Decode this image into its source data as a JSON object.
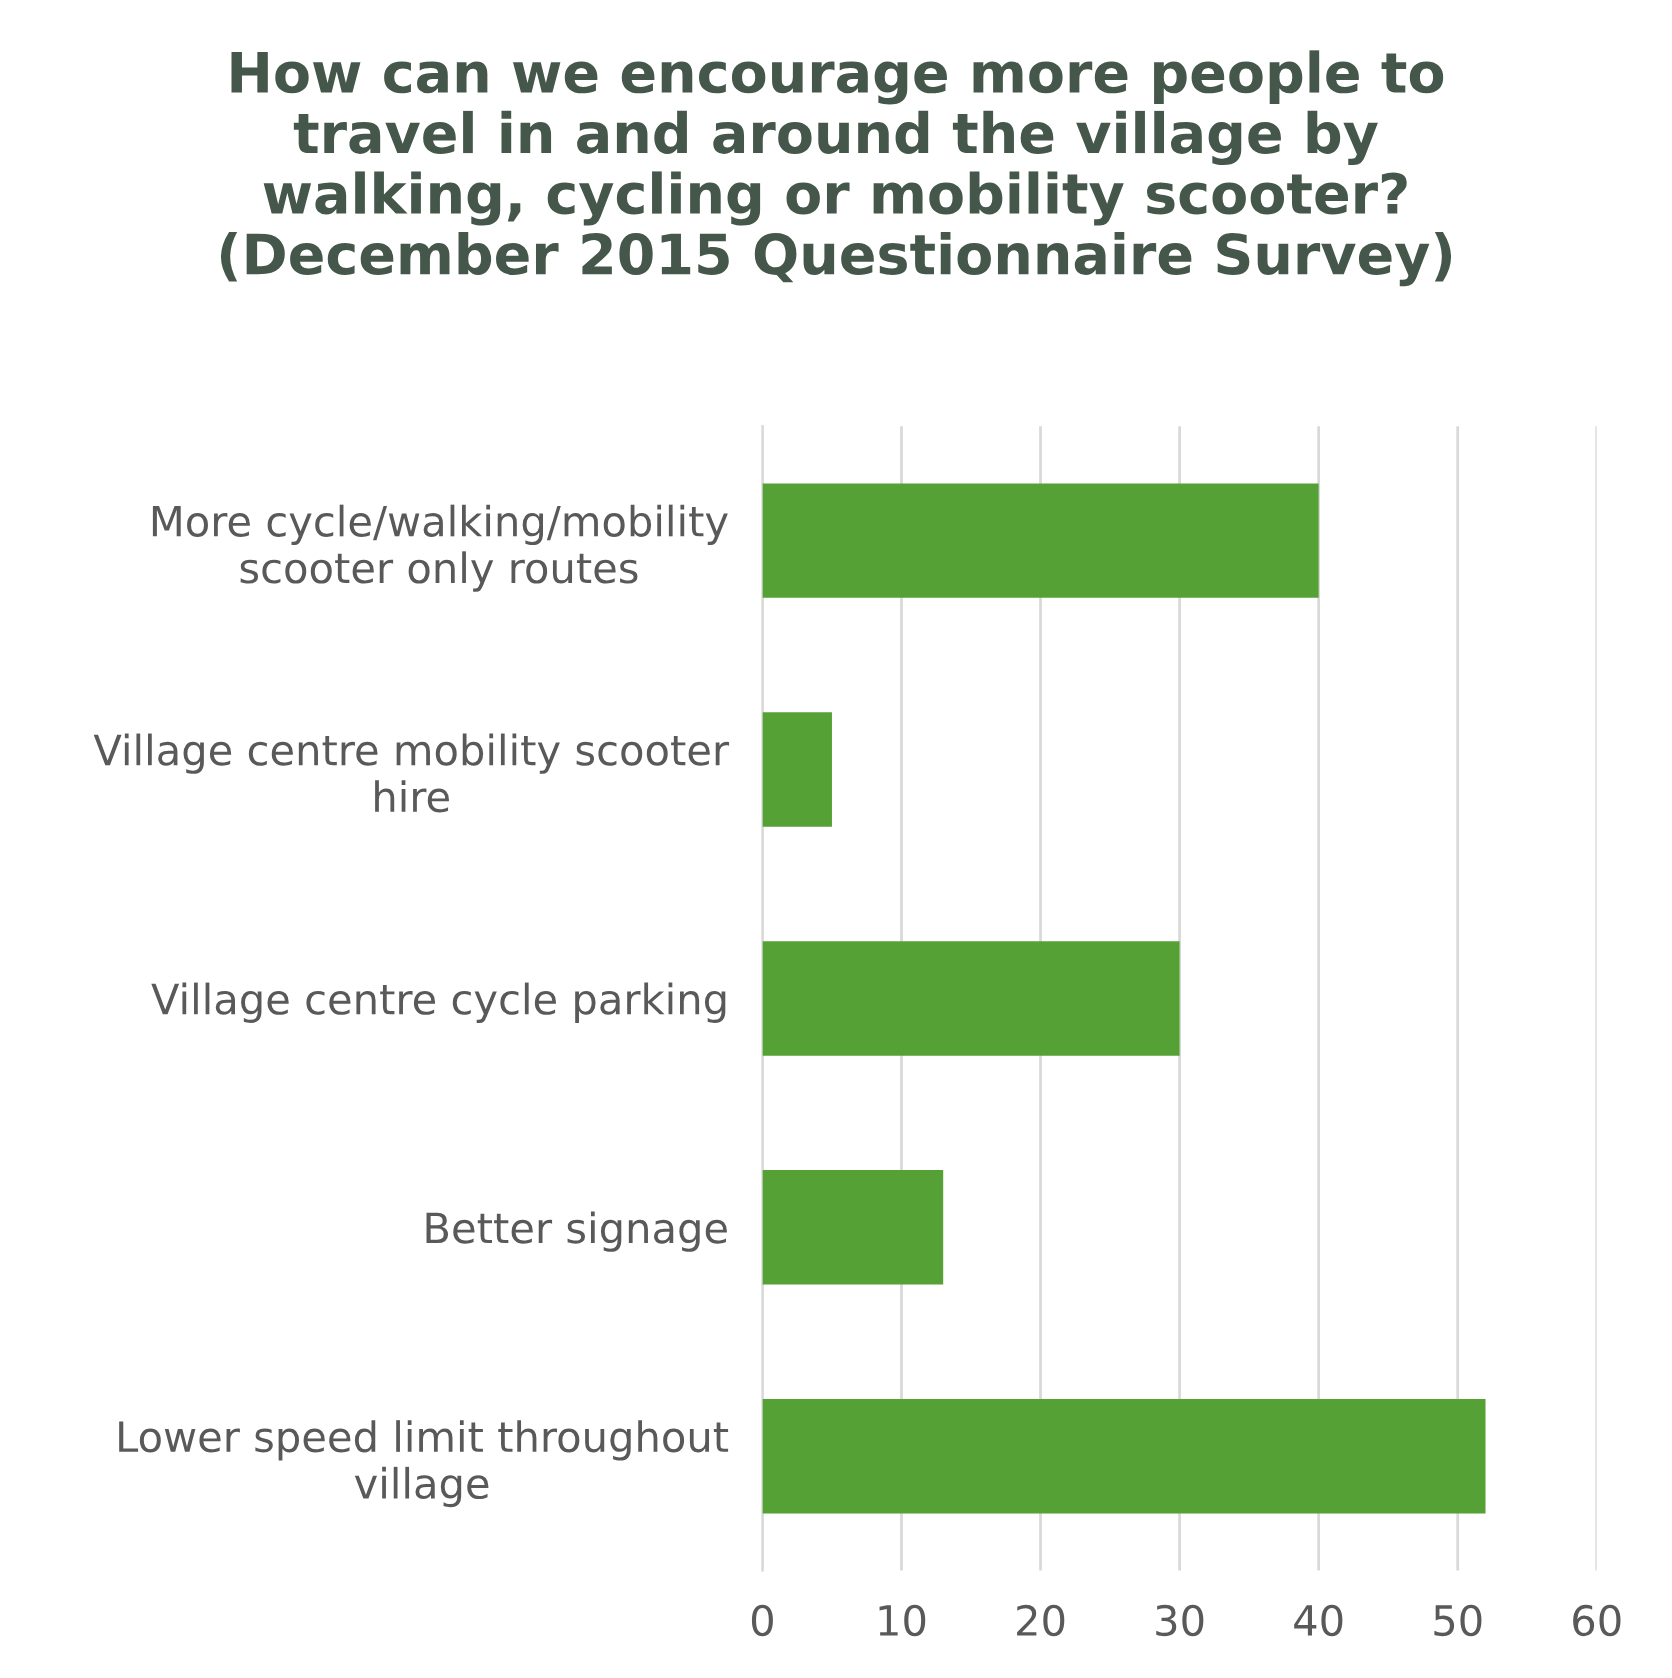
{
  "chart_data": {
    "type": "bar",
    "orientation": "horizontal",
    "title": "How can we encourage more people to\ntravel in and around the village by\nwalking, cycling or mobility scooter?\n(December 2015 Questionnaire Survey)",
    "categories": [
      "More cycle/walking/mobility\nscooter only routes",
      "Village centre mobility scooter\nhire",
      "Village centre cycle parking",
      "Better signage",
      "Lower speed limit throughout\nvillage"
    ],
    "values": [
      40,
      5,
      30,
      13,
      52
    ],
    "color": "#56a135",
    "xlim": [
      0,
      60
    ],
    "xticks": [
      0,
      10,
      20,
      30,
      40,
      50,
      60
    ],
    "grid": "x"
  }
}
